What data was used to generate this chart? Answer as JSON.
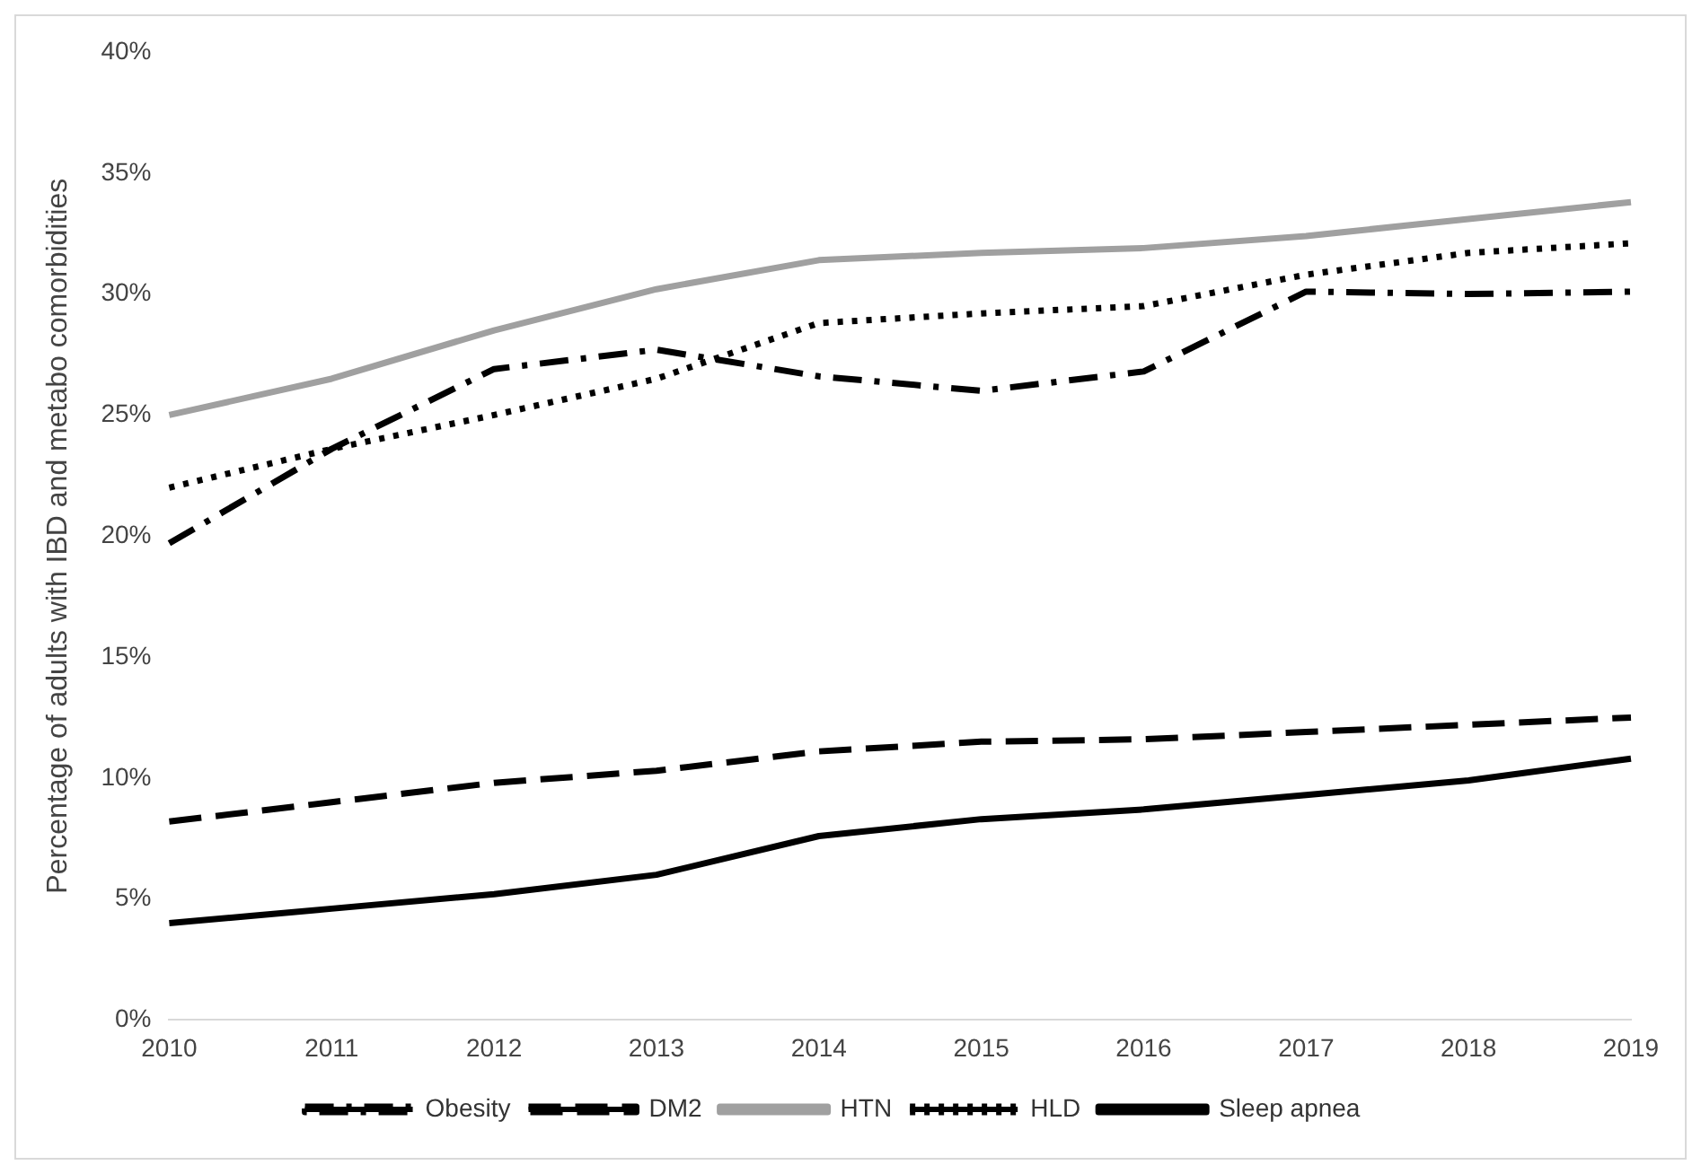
{
  "chart_data": {
    "type": "line",
    "ylabel": "Percentage of adults with IBD and metabo comorbidities",
    "categories": [
      "2010",
      "2011",
      "2012",
      "2013",
      "2014",
      "2015",
      "2016",
      "2017",
      "2018",
      "2019"
    ],
    "series": [
      {
        "name": "Obesity",
        "color": "#000000",
        "line_style": "dashdot",
        "values": [
          19.7,
          23.6,
          26.9,
          27.7,
          26.6,
          26.0,
          26.8,
          30.1,
          30.0,
          30.1
        ]
      },
      {
        "name": "DM2",
        "color": "#000000",
        "line_style": "dashed",
        "values": [
          8.2,
          9.0,
          9.8,
          10.3,
          11.1,
          11.5,
          11.6,
          11.9,
          12.2,
          12.5
        ]
      },
      {
        "name": "HTN",
        "color": "#a0a0a0",
        "line_style": "solid",
        "values": [
          25.0,
          26.5,
          28.5,
          30.2,
          31.4,
          31.7,
          31.9,
          32.4,
          33.1,
          33.8
        ]
      },
      {
        "name": "HLD",
        "color": "#000000",
        "line_style": "dotted",
        "values": [
          22.0,
          23.6,
          25.0,
          26.5,
          28.8,
          29.2,
          29.5,
          30.8,
          31.7,
          32.1
        ]
      },
      {
        "name": "Sleep apnea",
        "color": "#000000",
        "line_style": "solid",
        "values": [
          4.0,
          4.6,
          5.2,
          6.0,
          7.6,
          8.3,
          8.7,
          9.3,
          9.9,
          10.8
        ]
      }
    ],
    "ylim": [
      0,
      40
    ],
    "yticks": [
      {
        "value": 0,
        "label": "0%"
      },
      {
        "value": 5,
        "label": "5%"
      },
      {
        "value": 10,
        "label": "10%"
      },
      {
        "value": 15,
        "label": "15%"
      },
      {
        "value": 20,
        "label": "20%"
      },
      {
        "value": 25,
        "label": "25%"
      },
      {
        "value": 30,
        "label": "30%"
      },
      {
        "value": 35,
        "label": "35%"
      },
      {
        "value": 40,
        "label": "40%"
      }
    ],
    "grid": false,
    "legend": "bottom",
    "marker": "none"
  }
}
